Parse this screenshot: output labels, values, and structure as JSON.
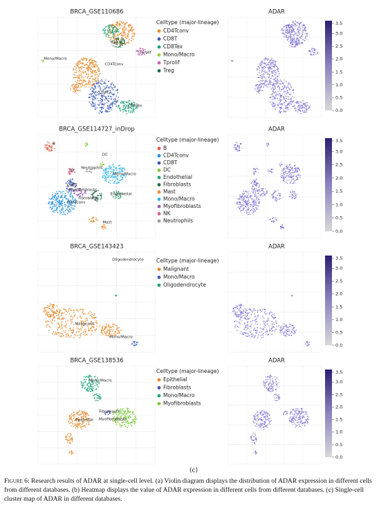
{
  "panels": [
    {
      "title": "BRCA_GSE110686",
      "legend_title": "Celltype (major-lineage)",
      "legend": [
        {
          "label": "CD4Tconv",
          "color": "#e8892b"
        },
        {
          "label": "CD8T",
          "color": "#3b58b5"
        },
        {
          "label": "CD8Tex",
          "color": "#1aa37a"
        },
        {
          "label": "Mono/Macro",
          "color": "#9acd4a"
        },
        {
          "label": "Tprolif",
          "color": "#c266b8"
        },
        {
          "label": "Treg",
          "color": "#1e6a4b"
        }
      ],
      "cluster_labels": [
        "Mono/Macro",
        "CD4Tconv",
        "Treg",
        "Tprolif",
        "CD8T",
        "CD8Tex"
      ],
      "right_title": "ADAR"
    },
    {
      "title": "BRCA_GSE114727_inDrop",
      "legend_title": "Celltype (major-lineage)",
      "legend": [
        {
          "label": "B",
          "color": "#e8553c"
        },
        {
          "label": "CD4Tconv",
          "color": "#1f8fe0"
        },
        {
          "label": "CD8T",
          "color": "#3b58b5"
        },
        {
          "label": "DC",
          "color": "#7ecb3b"
        },
        {
          "label": "Endothelial",
          "color": "#2d9c6d"
        },
        {
          "label": "Fibroblasts",
          "color": "#1e6a4b"
        },
        {
          "label": "Mast",
          "color": "#e8892b"
        },
        {
          "label": "Mono/Macro",
          "color": "#2bb5e8"
        },
        {
          "label": "Myofibroblasts",
          "color": "#9b59b6"
        },
        {
          "label": "NK",
          "color": "#e85a8a"
        },
        {
          "label": "Neutrophils",
          "color": "#9b9b9b"
        }
      ],
      "cluster_labels": [
        "B",
        "DC",
        "Neutrophils",
        "NK",
        "Mono/Macro",
        "CD8T",
        "Myofibroblasts",
        "Fibroblasts",
        "Endothelial",
        "CD4Tconv",
        "Mast"
      ],
      "right_title": "ADAR"
    },
    {
      "title": "BRCA_GSE143423",
      "legend_title": "Celltype (major-lineage)",
      "legend": [
        {
          "label": "Malignant",
          "color": "#e8892b"
        },
        {
          "label": "Mono/Macro",
          "color": "#3b58b5"
        },
        {
          "label": "Oligodendrocyte",
          "color": "#1aa37a"
        }
      ],
      "cluster_labels": [
        "Oligodendrocyte",
        "Malignant",
        "Mono/Macro"
      ],
      "right_title": "ADAR"
    },
    {
      "title": "BRCA_GSE138536",
      "legend_title": "Celltype (major-lineage)",
      "legend": [
        {
          "label": "Epithelial",
          "color": "#e8892b"
        },
        {
          "label": "Fibroblasts",
          "color": "#3b58b5"
        },
        {
          "label": "Mono/Macro",
          "color": "#1aa37a"
        },
        {
          "label": "Myofibroblasts",
          "color": "#7ecb3b"
        }
      ],
      "cluster_labels": [
        "Mono/Macro",
        "Fibroblasts",
        "Epithelial",
        "Myofibroblasts"
      ],
      "right_title": "ADAR"
    }
  ],
  "colorbar_ticks": [
    "0.0",
    "0.5",
    "1.0",
    "1.5",
    "2.0",
    "2.5",
    "3.0",
    "3.5"
  ],
  "panel_label": "(c)",
  "caption": {
    "label": "Figure 6:",
    "text": "Research results of ADAR at single-cell level. (a) Violin diagram displays the distribution of ADAR expression in different cells from different databases. (b) Heatmap displays the value of ADAR expression in different cells from different databases. (c) Single-cell cluster map of ADAR in different databases."
  }
}
